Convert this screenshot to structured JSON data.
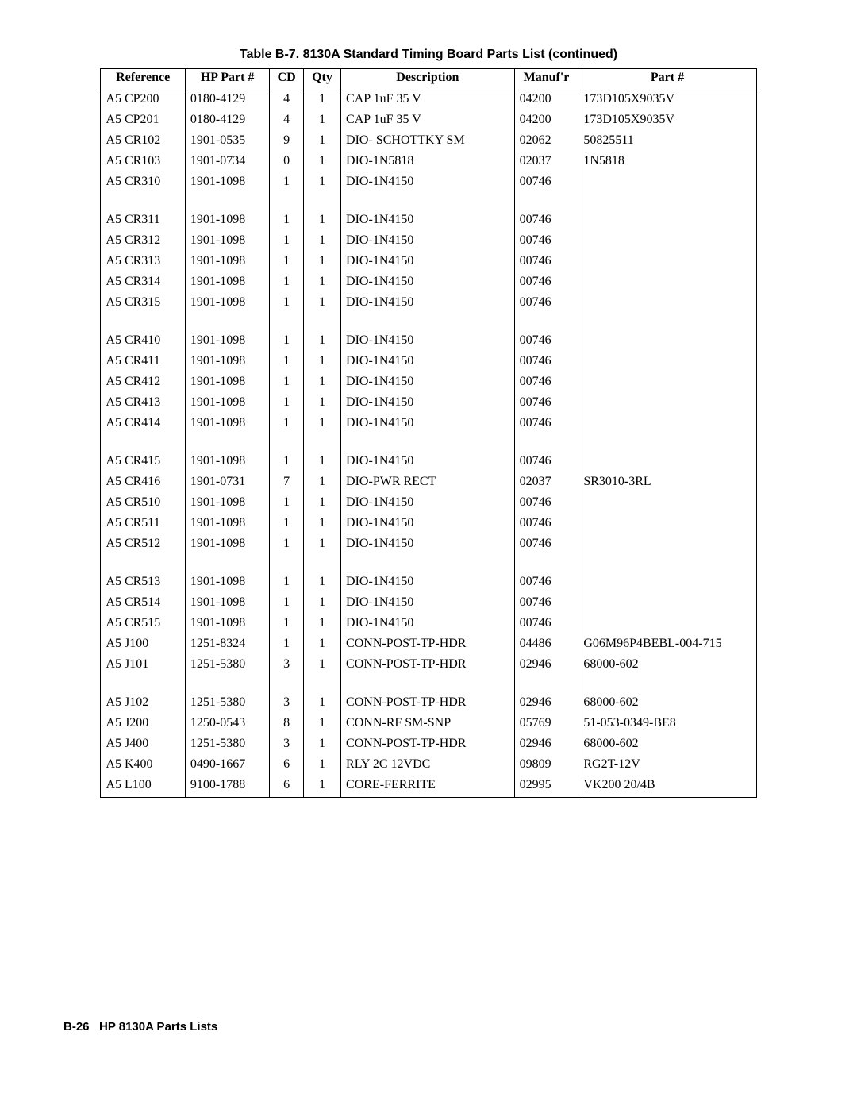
{
  "title": "Table B-7. 8130A Standard Timing Board Parts List (continued)",
  "footer": "B-26   HP 8130A Parts Lists",
  "headers": [
    "Reference",
    "HP Part #",
    "CD",
    "Qty",
    "Description",
    "Manuf'r",
    "Part #"
  ],
  "rows": [
    {
      "ref": "A5 CP200",
      "hp": "0180-4129",
      "cd": "4",
      "qty": "1",
      "desc": "CAP 1uF 35 V",
      "mfr": "04200",
      "part": "173D105X9035V"
    },
    {
      "ref": "A5 CP201",
      "hp": "0180-4129",
      "cd": "4",
      "qty": "1",
      "desc": "CAP 1uF 35 V",
      "mfr": "04200",
      "part": "173D105X9035V"
    },
    {
      "ref": "A5 CR102",
      "hp": "1901-0535",
      "cd": "9",
      "qty": "1",
      "desc": "DIO- SCHOTTKY SM",
      "mfr": "02062",
      "part": "50825511"
    },
    {
      "ref": "A5 CR103",
      "hp": "1901-0734",
      "cd": "0",
      "qty": "1",
      "desc": "DIO-1N5818",
      "mfr": "02037",
      "part": "1N5818"
    },
    {
      "ref": "A5 CR310",
      "hp": "1901-1098",
      "cd": "1",
      "qty": "1",
      "desc": "DIO-1N4150",
      "mfr": "00746",
      "part": ""
    },
    {
      "spacer": true
    },
    {
      "ref": "A5 CR311",
      "hp": "1901-1098",
      "cd": "1",
      "qty": "1",
      "desc": "DIO-1N4150",
      "mfr": "00746",
      "part": ""
    },
    {
      "ref": "A5 CR312",
      "hp": "1901-1098",
      "cd": "1",
      "qty": "1",
      "desc": "DIO-1N4150",
      "mfr": "00746",
      "part": ""
    },
    {
      "ref": "A5 CR313",
      "hp": "1901-1098",
      "cd": "1",
      "qty": "1",
      "desc": "DIO-1N4150",
      "mfr": "00746",
      "part": ""
    },
    {
      "ref": "A5 CR314",
      "hp": "1901-1098",
      "cd": "1",
      "qty": "1",
      "desc": "DIO-1N4150",
      "mfr": "00746",
      "part": ""
    },
    {
      "ref": "A5 CR315",
      "hp": "1901-1098",
      "cd": "1",
      "qty": "1",
      "desc": "DIO-1N4150",
      "mfr": "00746",
      "part": ""
    },
    {
      "spacer": true
    },
    {
      "ref": "A5 CR410",
      "hp": "1901-1098",
      "cd": "1",
      "qty": "1",
      "desc": "DIO-1N4150",
      "mfr": "00746",
      "part": ""
    },
    {
      "ref": "A5 CR411",
      "hp": "1901-1098",
      "cd": "1",
      "qty": "1",
      "desc": "DIO-1N4150",
      "mfr": "00746",
      "part": ""
    },
    {
      "ref": "A5 CR412",
      "hp": "1901-1098",
      "cd": "1",
      "qty": "1",
      "desc": "DIO-1N4150",
      "mfr": "00746",
      "part": ""
    },
    {
      "ref": "A5 CR413",
      "hp": "1901-1098",
      "cd": "1",
      "qty": "1",
      "desc": "DIO-1N4150",
      "mfr": "00746",
      "part": ""
    },
    {
      "ref": "A5 CR414",
      "hp": "1901-1098",
      "cd": "1",
      "qty": "1",
      "desc": "DIO-1N4150",
      "mfr": "00746",
      "part": ""
    },
    {
      "spacer": true
    },
    {
      "ref": "A5 CR415",
      "hp": "1901-1098",
      "cd": "1",
      "qty": "1",
      "desc": "DIO-1N4150",
      "mfr": "00746",
      "part": ""
    },
    {
      "ref": "A5 CR416",
      "hp": "1901-0731",
      "cd": "7",
      "qty": "1",
      "desc": "DIO-PWR RECT",
      "mfr": "02037",
      "part": "SR3010-3RL"
    },
    {
      "ref": "A5 CR510",
      "hp": "1901-1098",
      "cd": "1",
      "qty": "1",
      "desc": "DIO-1N4150",
      "mfr": "00746",
      "part": ""
    },
    {
      "ref": "A5 CR511",
      "hp": "1901-1098",
      "cd": "1",
      "qty": "1",
      "desc": "DIO-1N4150",
      "mfr": "00746",
      "part": ""
    },
    {
      "ref": "A5 CR512",
      "hp": "1901-1098",
      "cd": "1",
      "qty": "1",
      "desc": "DIO-1N4150",
      "mfr": "00746",
      "part": ""
    },
    {
      "spacer": true
    },
    {
      "ref": "A5 CR513",
      "hp": "1901-1098",
      "cd": "1",
      "qty": "1",
      "desc": "DIO-1N4150",
      "mfr": "00746",
      "part": ""
    },
    {
      "ref": "A5 CR514",
      "hp": "1901-1098",
      "cd": "1",
      "qty": "1",
      "desc": "DIO-1N4150",
      "mfr": "00746",
      "part": ""
    },
    {
      "ref": "A5 CR515",
      "hp": "1901-1098",
      "cd": "1",
      "qty": "1",
      "desc": "DIO-1N4150",
      "mfr": "00746",
      "part": ""
    },
    {
      "ref": "A5 J100",
      "hp": "1251-8324",
      "cd": "1",
      "qty": "1",
      "desc": "CONN-POST-TP-HDR",
      "mfr": "04486",
      "part": "G06M96P4BEBL-004-715"
    },
    {
      "ref": "A5 J101",
      "hp": "1251-5380",
      "cd": "3",
      "qty": "1",
      "desc": "CONN-POST-TP-HDR",
      "mfr": "02946",
      "part": "68000-602"
    },
    {
      "spacer": true
    },
    {
      "ref": "A5 J102",
      "hp": "1251-5380",
      "cd": "3",
      "qty": "1",
      "desc": "CONN-POST-TP-HDR",
      "mfr": "02946",
      "part": "68000-602"
    },
    {
      "ref": "A5 J200",
      "hp": "1250-0543",
      "cd": "8",
      "qty": "1",
      "desc": "CONN-RF SM-SNP",
      "mfr": "05769",
      "part": "51-053-0349-BE8"
    },
    {
      "ref": "A5 J400",
      "hp": "1251-5380",
      "cd": "3",
      "qty": "1",
      "desc": "CONN-POST-TP-HDR",
      "mfr": "02946",
      "part": "68000-602"
    },
    {
      "ref": "A5 K400",
      "hp": "0490-1667",
      "cd": "6",
      "qty": "1",
      "desc": "RLY 2C 12VDC",
      "mfr": "09809",
      "part": "RG2T-12V"
    },
    {
      "ref": "A5 L100",
      "hp": "9100-1788",
      "cd": "6",
      "qty": "1",
      "desc": "CORE-FERRITE",
      "mfr": "02995",
      "part": "VK200 20/4B"
    }
  ]
}
